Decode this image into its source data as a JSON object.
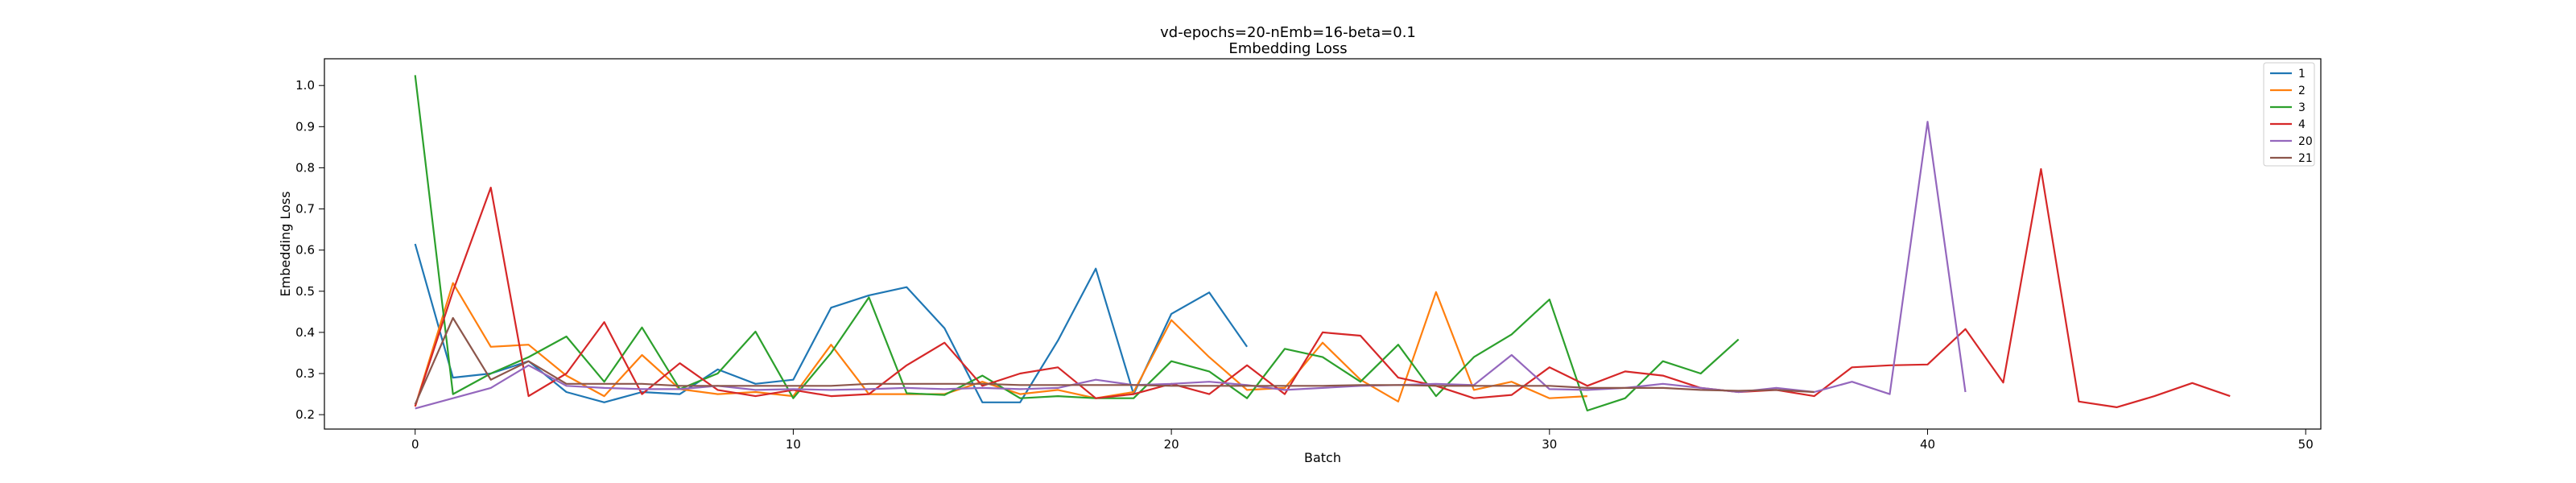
{
  "chart_data": {
    "type": "line",
    "title": "vd-epochs=20-nEmb=16-beta=0.1",
    "subtitle": "Embedding Loss",
    "xlabel": "Batch",
    "ylabel": "Embedding Loss",
    "xlim": [
      -2.4,
      50.4
    ],
    "ylim": [
      0.165,
      1.065
    ],
    "xticks": [
      0,
      10,
      20,
      30,
      40,
      50
    ],
    "yticks": [
      0.2,
      0.3,
      0.4,
      0.5,
      0.6,
      0.7,
      0.8,
      0.9,
      1.0
    ],
    "ytick_labels": [
      "0.2",
      "0.3",
      "0.4",
      "0.5",
      "0.6",
      "0.7",
      "0.8",
      "0.9",
      "1.0"
    ],
    "grid": false,
    "legend_position": "top-right",
    "series": [
      {
        "name": "1",
        "color": "#1f77b4",
        "values": [
          0.615,
          0.29,
          0.3,
          0.33,
          0.255,
          0.23,
          0.255,
          0.25,
          0.31,
          0.275,
          0.285,
          0.46,
          0.49,
          0.51,
          0.41,
          0.23,
          0.23,
          0.38,
          0.555,
          0.25,
          0.445,
          0.497,
          0.365
        ]
      },
      {
        "name": "2",
        "color": "#ff7f0e",
        "values": [
          0.22,
          0.52,
          0.365,
          0.37,
          0.295,
          0.245,
          0.345,
          0.262,
          0.25,
          0.255,
          0.245,
          0.37,
          0.25,
          0.25,
          0.25,
          0.28,
          0.25,
          0.26,
          0.24,
          0.255,
          0.43,
          0.34,
          0.26,
          0.265,
          0.375,
          0.285,
          0.232,
          0.498,
          0.26,
          0.28,
          0.24,
          0.245
        ]
      },
      {
        "name": "3",
        "color": "#2ca02c",
        "values": [
          1.025,
          0.25,
          0.3,
          0.34,
          0.39,
          0.28,
          0.412,
          0.262,
          0.3,
          0.402,
          0.24,
          0.35,
          0.485,
          0.252,
          0.248,
          0.295,
          0.24,
          0.245,
          0.24,
          0.24,
          0.33,
          0.305,
          0.24,
          0.36,
          0.34,
          0.28,
          0.37,
          0.245,
          0.34,
          0.395,
          0.48,
          0.21,
          0.24,
          0.33,
          0.3,
          0.383
        ]
      },
      {
        "name": "4",
        "color": "#d62728",
        "values": [
          0.22,
          0.5,
          0.752,
          0.245,
          0.3,
          0.425,
          0.25,
          0.325,
          0.26,
          0.245,
          0.26,
          0.245,
          0.25,
          0.32,
          0.375,
          0.27,
          0.3,
          0.315,
          0.24,
          0.25,
          0.275,
          0.25,
          0.32,
          0.25,
          0.4,
          0.392,
          0.29,
          0.27,
          0.24,
          0.248,
          0.315,
          0.27,
          0.305,
          0.295,
          0.265,
          0.255,
          0.26,
          0.245,
          0.315,
          0.32,
          0.322,
          0.408,
          0.278,
          0.797,
          0.232,
          0.218,
          0.245,
          0.277,
          0.245
        ]
      },
      {
        "name": "20",
        "color": "#9467bd",
        "values": [
          0.215,
          0.24,
          0.265,
          0.32,
          0.27,
          0.265,
          0.262,
          0.262,
          0.27,
          0.26,
          0.262,
          0.26,
          0.262,
          0.265,
          0.262,
          0.265,
          0.262,
          0.265,
          0.285,
          0.272,
          0.275,
          0.28,
          0.272,
          0.26,
          0.265,
          0.27,
          0.272,
          0.275,
          0.272,
          0.345,
          0.262,
          0.26,
          0.265,
          0.275,
          0.265,
          0.255,
          0.265,
          0.255,
          0.28,
          0.25,
          0.912,
          0.255
        ]
      },
      {
        "name": "21",
        "color": "#8c564b",
        "values": [
          0.225,
          0.435,
          0.285,
          0.33,
          0.275,
          0.275,
          0.275,
          0.27,
          0.27,
          0.27,
          0.27,
          0.27,
          0.275,
          0.275,
          0.275,
          0.275,
          0.272,
          0.272,
          0.272,
          0.272,
          0.27,
          0.27,
          0.27,
          0.27,
          0.27,
          0.272,
          0.272,
          0.27,
          0.27,
          0.27,
          0.27,
          0.265,
          0.265,
          0.265,
          0.26,
          0.258,
          0.26,
          0.255
        ]
      }
    ]
  }
}
